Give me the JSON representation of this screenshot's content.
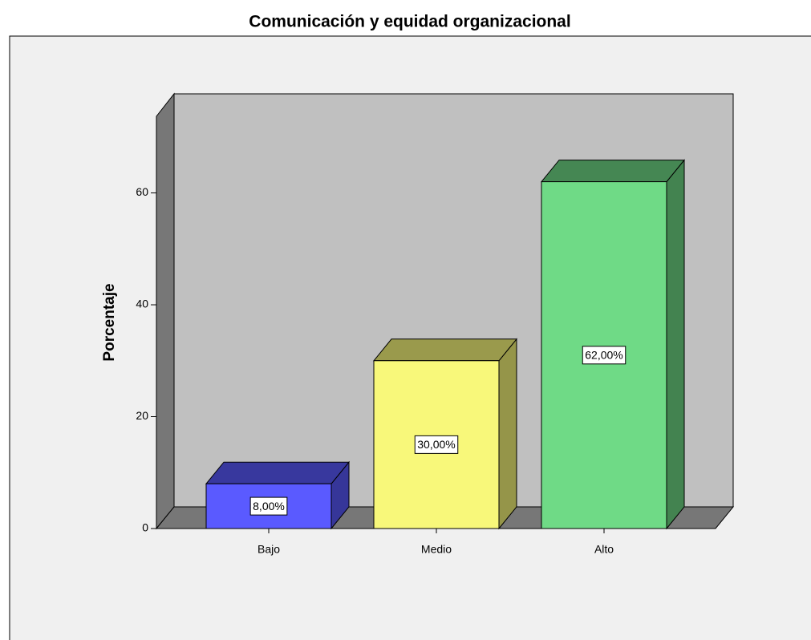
{
  "chart_data": {
    "type": "bar3d",
    "title": "Comunicación y equidad organizacional",
    "y_label": "Porcentaje",
    "categories": [
      "Bajo",
      "Medio",
      "Alto"
    ],
    "values": [
      8,
      30,
      62
    ],
    "value_labels": [
      "8,00%",
      "30,00%",
      "62,00%"
    ],
    "colors": [
      "#5a5aff",
      "#f8f87a",
      "#6fda86"
    ],
    "ylim": [
      0,
      73.7
    ],
    "yticks": [
      0,
      20,
      40,
      60
    ]
  }
}
